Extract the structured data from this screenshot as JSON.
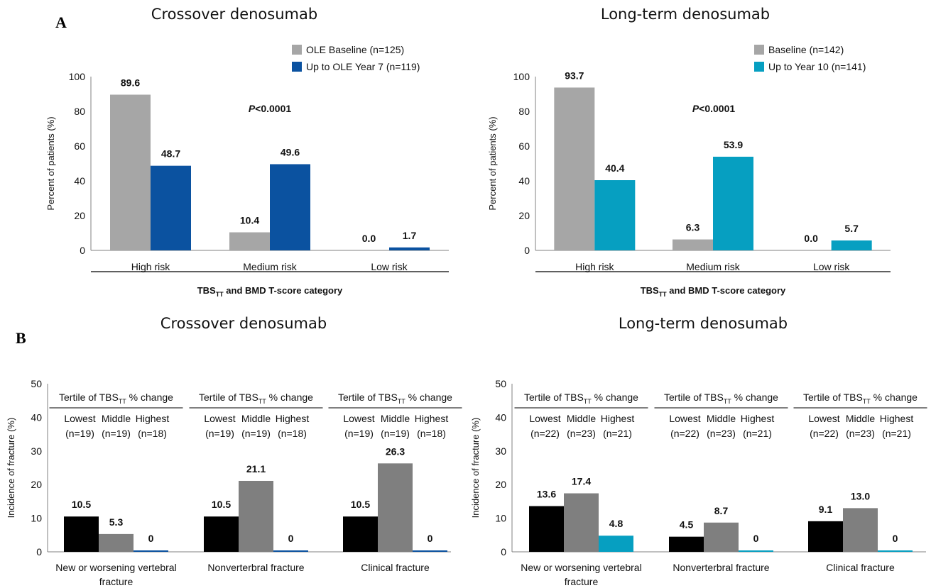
{
  "panel_labels": {
    "a": "A",
    "b": "B"
  },
  "colors": {
    "grey": "#a6a6a6",
    "grey_dark": "#7f7f7f",
    "black": "#000000",
    "navy": "#0b52a0",
    "teal": "#069fc1"
  },
  "chart_data": [
    {
      "id": "A1",
      "type": "bar",
      "title": "Crossover denosumab",
      "categories": [
        "High risk",
        "Medium risk",
        "Low risk"
      ],
      "series": [
        {
          "name": "OLE Baseline (n=125)",
          "values": [
            89.6,
            10.4,
            0.0
          ],
          "labels": [
            "89.6",
            "10.4",
            "0.0"
          ],
          "color": "#a6a6a6"
        },
        {
          "name": "Up to OLE Year 7 (n=119)",
          "values": [
            48.7,
            49.6,
            1.7
          ],
          "labels": [
            "48.7",
            "49.6",
            "1.7"
          ],
          "color": "#0b52a0"
        }
      ],
      "yticks": [
        "0",
        "20",
        "40",
        "60",
        "80",
        "100"
      ],
      "ylim": [
        0,
        100
      ],
      "ylabel": "Percent of patients (%)",
      "xlabel": {
        "main": "TBS",
        "sub": "TT",
        "rest": " and BMD T-score category"
      },
      "pvalue": {
        "italic": "P",
        "rest": "<0.0001"
      },
      "legend_position": "top-right"
    },
    {
      "id": "A2",
      "type": "bar",
      "title": "Long-term denosumab",
      "categories": [
        "High risk",
        "Medium risk",
        "Low risk"
      ],
      "series": [
        {
          "name": "Baseline (n=142)",
          "values": [
            93.7,
            6.3,
            0.0
          ],
          "labels": [
            "93.7",
            "6.3",
            "0.0"
          ],
          "color": "#a6a6a6"
        },
        {
          "name": "Up to Year 10 (n=141)",
          "values": [
            40.4,
            53.9,
            5.7
          ],
          "labels": [
            "40.4",
            "53.9",
            "5.7"
          ],
          "color": "#069fc1"
        }
      ],
      "yticks": [
        "0",
        "20",
        "40",
        "60",
        "80",
        "100"
      ],
      "ylim": [
        0,
        100
      ],
      "ylabel": "Percent of patients (%)",
      "xlabel": {
        "main": "TBS",
        "sub": "TT",
        "rest": " and BMD T-score category"
      },
      "pvalue": {
        "italic": "P",
        "rest": "<0.0001"
      },
      "legend_position": "top-right"
    },
    {
      "id": "B1",
      "type": "bar",
      "title": "Crossover denosumab",
      "groups": [
        {
          "label": [
            "New or worsening vertebral",
            "fracture"
          ],
          "values": [
            10.5,
            5.3,
            0
          ],
          "labels": [
            "10.5",
            "5.3",
            "0"
          ]
        },
        {
          "label": [
            "Nonverterbral fracture"
          ],
          "values": [
            10.5,
            21.1,
            0
          ],
          "labels": [
            "10.5",
            "21.1",
            "0"
          ]
        },
        {
          "label": [
            "Clinical fracture"
          ],
          "values": [
            10.5,
            26.3,
            0
          ],
          "labels": [
            "10.5",
            "26.3",
            "0"
          ]
        }
      ],
      "series": [
        {
          "name": "Lowest",
          "n": "(n=19)",
          "color": "#000000"
        },
        {
          "name": "Middle",
          "n": "(n=19)",
          "color": "#7f7f7f"
        },
        {
          "name": "Highest",
          "n": "(n=18)",
          "color": "#0b52a0"
        }
      ],
      "tertile_header": {
        "pre": "Tertile of TBS",
        "sub": "TT",
        "post": " % change"
      },
      "yticks": [
        "0",
        "10",
        "20",
        "30",
        "40",
        "50"
      ],
      "ylim": [
        0,
        50
      ],
      "ylabel": "Incidence of fracture (%)"
    },
    {
      "id": "B2",
      "type": "bar",
      "title": "Long-term denosumab",
      "groups": [
        {
          "label": [
            "New or worsening vertebral",
            "fracture"
          ],
          "values": [
            13.6,
            17.4,
            4.8
          ],
          "labels": [
            "13.6",
            "17.4",
            "4.8"
          ]
        },
        {
          "label": [
            "Nonverterbral fracture"
          ],
          "values": [
            4.5,
            8.7,
            0
          ],
          "labels": [
            "4.5",
            "8.7",
            "0"
          ]
        },
        {
          "label": [
            "Clinical fracture"
          ],
          "values": [
            9.1,
            13.0,
            0
          ],
          "labels": [
            "9.1",
            "13.0",
            "0"
          ]
        }
      ],
      "series": [
        {
          "name": "Lowest",
          "n": "(n=22)",
          "color": "#000000"
        },
        {
          "name": "Middle",
          "n": "(n=23)",
          "color": "#7f7f7f"
        },
        {
          "name": "Highest",
          "n": "(n=21)",
          "color": "#069fc1"
        }
      ],
      "tertile_header": {
        "pre": "Tertile of TBS",
        "sub": "TT",
        "post": " % change"
      },
      "yticks": [
        "0",
        "10",
        "20",
        "30",
        "40",
        "50"
      ],
      "ylim": [
        0,
        50
      ],
      "ylabel": "Incidence of fracture (%)"
    }
  ]
}
